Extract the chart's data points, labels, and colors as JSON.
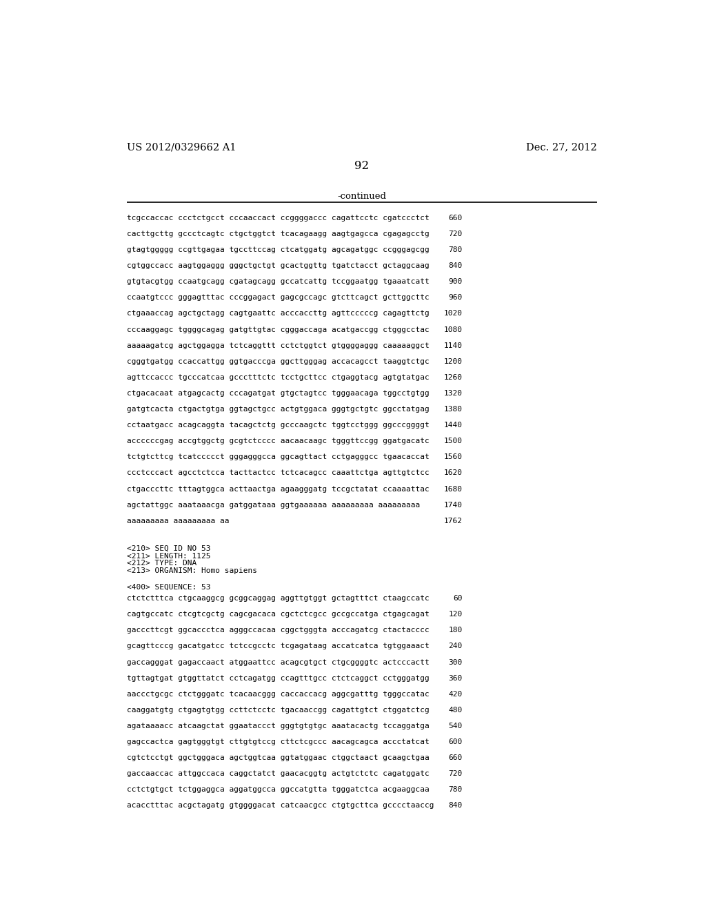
{
  "header_left": "US 2012/0329662 A1",
  "header_right": "Dec. 27, 2012",
  "page_number": "92",
  "continued_label": "-continued",
  "background_color": "#ffffff",
  "text_color": "#000000",
  "sequence_lines_part1": [
    [
      "tcgccaccac ccctctgcct cccaaccact ccggggaccc cagattcctc cgatccctct",
      "660"
    ],
    [
      "cacttgcttg gccctcagtc ctgctggtct tcacagaagg aagtgagcca cgagagcctg",
      "720"
    ],
    [
      "gtagtggggg ccgttgagaa tgccttccag ctcatggatg agcagatggc ccgggagcgg",
      "780"
    ],
    [
      "cgtggccacc aagtggaggg gggctgctgt gcactggttg tgatctacct gctaggcaag",
      "840"
    ],
    [
      "gtgtacgtgg ccaatgcagg cgatagcagg gccatcattg tccggaatgg tgaaatcatt",
      "900"
    ],
    [
      "ccaatgtccc gggagtttac cccggagact gagcgccagc gtcttcagct gcttggcttc",
      "960"
    ],
    [
      "ctgaaaccag agctgctagg cagtgaattc acccaccttg agttcccccg cagagttctg",
      "1020"
    ],
    [
      "cccaaggagc tggggcagag gatgttgtac cgggaccaga acatgaccgg ctgggcctac",
      "1080"
    ],
    [
      "aaaaagatcg agctggagga tctcaggttt cctctggtct gtggggaggg caaaaaggct",
      "1140"
    ],
    [
      "cgggtgatgg ccaccattgg ggtgacccga ggcttgggag accacagcct taaggtctgc",
      "1200"
    ],
    [
      "agttccaccc tgcccatcaa gccctttctc tcctgcttcc ctgaggtacg agtgtatgac",
      "1260"
    ],
    [
      "ctgacacaat atgagcactg cccagatgat gtgctagtcc tgggaacaga tggcctgtgg",
      "1320"
    ],
    [
      "gatgtcacta ctgactgtga ggtagctgcc actgtggaca gggtgctgtc ggcctatgag",
      "1380"
    ],
    [
      "cctaatgacc acagcaggta tacagctctg gcccaagctc tggtcctggg ggcccggggt",
      "1440"
    ],
    [
      "accccccgag accgtggctg gcgtctcccc aacaacaagc tgggttccgg ggatgacatc",
      "1500"
    ],
    [
      "tctgtcttcg tcatccccct gggagggcca ggcagttact cctgagggcc tgaacaccat",
      "1560"
    ],
    [
      "ccctcccact agcctctcca tacttactcc tctcacagcc caaattctga agttgtctcc",
      "1620"
    ],
    [
      "ctgacccttc tttagtggca acttaactga agaagggatg tccgctatat ccaaaattac",
      "1680"
    ],
    [
      "agctattggc aaataaacga gatggataaa ggtgaaaaaa aaaaaaaaa aaaaaaaaa",
      "1740"
    ],
    [
      "aaaaaaaaa aaaaaaaaa aa",
      "1762"
    ]
  ],
  "metadata_lines": [
    "<210> SEQ ID NO 53",
    "<211> LENGTH: 1125",
    "<212> TYPE: DNA",
    "<213> ORGANISM: Homo sapiens"
  ],
  "sequence_label": "<400> SEQUENCE: 53",
  "sequence_lines_part2": [
    [
      "ctctctttca ctgcaaggcg gcggcaggag aggttgtggt gctagtttct ctaagccatc",
      "60"
    ],
    [
      "cagtgccatc ctcgtcgctg cagcgacaca cgctctcgcc gccgccatga ctgagcagat",
      "120"
    ],
    [
      "gacccttcgt ggcaccctca agggccacaa cggctgggta acccagatcg ctactacccc",
      "180"
    ],
    [
      "gcagttcccg gacatgatcc tctccgcctc tcgagataag accatcatca tgtggaaact",
      "240"
    ],
    [
      "gaccagggat gagaccaact atggaattcc acagcgtgct ctgcggggtc actcccactt",
      "300"
    ],
    [
      "tgttagtgat gtggttatct cctcagatgg ccagtttgcc ctctcaggct cctgggatgg",
      "360"
    ],
    [
      "aaccctgcgc ctctgggatc tcacaacggg caccaccacg aggcgatttg tgggccatac",
      "420"
    ],
    [
      "caaggatgtg ctgagtgtgg ccttctcctc tgacaaccgg cagattgtct ctggatctcg",
      "480"
    ],
    [
      "agataaaacc atcaagctat ggaataccct gggtgtgtgc aaatacactg tccaggatga",
      "540"
    ],
    [
      "gagccactca gagtgggtgt cttgtgtccg cttctcgccc aacagcagca accctatcat",
      "600"
    ],
    [
      "cgtctcctgt ggctgggaca agctggtcaa ggtatggaac ctggctaact gcaagctgaa",
      "660"
    ],
    [
      "gaccaaccac attggccaca caggctatct gaacacggtg actgtctctc cagatggatc",
      "720"
    ],
    [
      "cctctgtgct tctggaggca aggatggcca ggccatgtta tgggatctca acgaaggcaa",
      "780"
    ],
    [
      "acacctttac acgctagatg gtggggacat catcaacgcc ctgtgcttca gcccctaaccg",
      "840"
    ]
  ]
}
